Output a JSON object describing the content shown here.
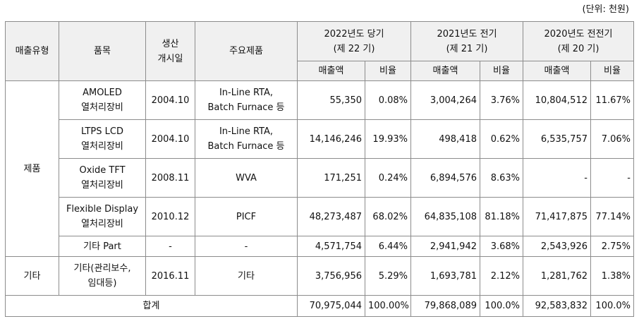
{
  "unit_note": "(단위: 천원)",
  "headers": {
    "type": "매출유형",
    "item": "품목",
    "launch_line1": "생산",
    "launch_line2": "개시일",
    "products": "주요제품",
    "y2022_line1": "2022년도 당기",
    "y2022_line2": "(제 22 기)",
    "y2021_line1": "2021년도 전기",
    "y2021_line2": "(제 21 기)",
    "y2020_line1": "2020년도 전전기",
    "y2020_line2": "(제 20 기)",
    "sales": "매출액",
    "ratio": "비율"
  },
  "groups": {
    "products": "제품",
    "other": "기타"
  },
  "rows": [
    {
      "item1": "AMOLED",
      "item2": "열처리장비",
      "date": "2004.10",
      "prod1": "In-Line RTA,",
      "prod2": "Batch Furnace 등",
      "s22": "55,350",
      "r22": "0.08%",
      "s21": "3,004,264",
      "r21": "3.76%",
      "s20": "10,804,512",
      "r20": "11.67%"
    },
    {
      "item1": "LTPS LCD",
      "item2": "열처리장비",
      "date": "2004.10",
      "prod1": "In-Line RTA,",
      "prod2": "Batch Furnace 등",
      "s22": "14,146,246",
      "r22": "19.93%",
      "s21": "498,418",
      "r21": "0.62%",
      "s20": "6,535,757",
      "r20": "7.06%"
    },
    {
      "item1": "Oxide TFT",
      "item2": "열처리장비",
      "date": "2008.11",
      "prod1": "WVA",
      "prod2": "",
      "s22": "171,251",
      "r22": "0.24%",
      "s21": "6,894,576",
      "r21": "8.63%",
      "s20": "-",
      "r20": "-"
    },
    {
      "item1": "Flexible Display",
      "item2": "열처리장비",
      "date": "2010.12",
      "prod1": "PICF",
      "prod2": "",
      "s22": "48,273,487",
      "r22": "68.02%",
      "s21": "64,835,108",
      "r21": "81.18%",
      "s20": "71,417,875",
      "r20": "77.14%"
    },
    {
      "item1": "기타 Part",
      "item2": "",
      "date": "-",
      "prod1": "-",
      "prod2": "",
      "s22": "4,571,754",
      "r22": "6.44%",
      "s21": "2,941,942",
      "r21": "3.68%",
      "s20": "2,543,926",
      "r20": "2.75%"
    },
    {
      "item1": "기타(관리보수,",
      "item2": "임대등)",
      "date": "2016.11",
      "prod1": "기타",
      "prod2": "",
      "s22": "3,756,956",
      "r22": "5.29%",
      "s21": "1,693,781",
      "r21": "2.12%",
      "s20": "1,281,762",
      "r20": "1.38%"
    }
  ],
  "total": {
    "label": "합계",
    "s22": "70,975,044",
    "r22": "100.00%",
    "s21": "79,868,089",
    "r21": "100.0%",
    "s20": "92,583,832",
    "r20": "100.0%"
  }
}
